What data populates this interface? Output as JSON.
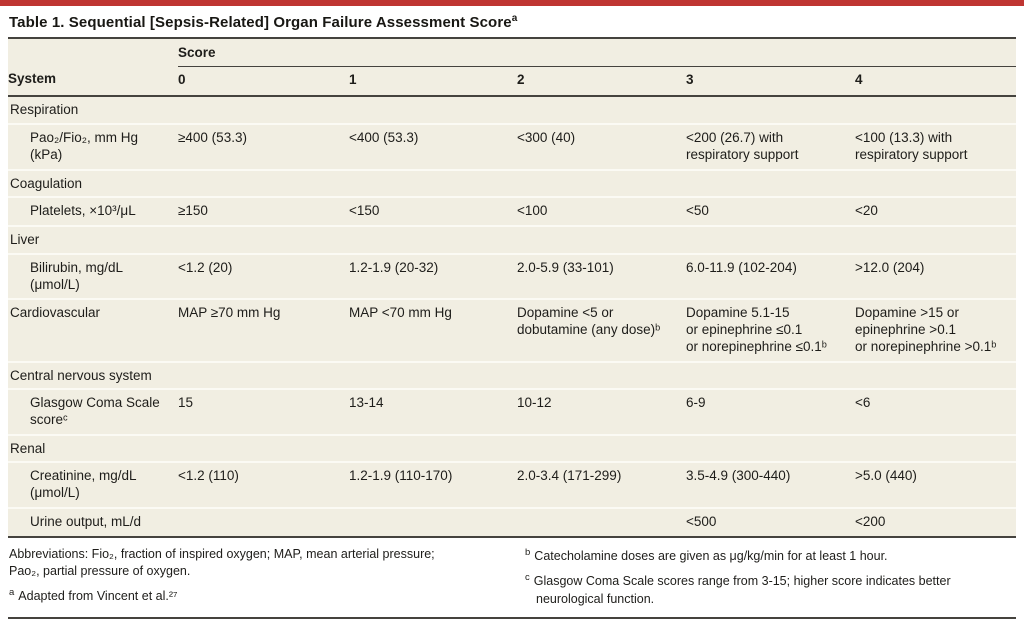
{
  "colors": {
    "accent_bar": "#bf3532",
    "table_background": "#f1eee2",
    "heavy_rule": "#45433e"
  },
  "title": {
    "text": "Table 1. Sequential [Sepsis-Related] Organ Failure Assessment Score",
    "marker": "a"
  },
  "header": {
    "score_group": "Score",
    "system": "System",
    "scores": [
      "0",
      "1",
      "2",
      "3",
      "4"
    ]
  },
  "rows": [
    {
      "type": "section",
      "label": "Respiration"
    },
    {
      "type": "sub",
      "label": "Pao₂/Fio₂, mm Hg\n(kPa)",
      "values": [
        "≥400 (53.3)",
        "<400 (53.3)",
        "<300 (40)",
        "<200 (26.7) with\nrespiratory support",
        "<100 (13.3) with\nrespiratory support"
      ]
    },
    {
      "type": "section",
      "label": "Coagulation"
    },
    {
      "type": "sub",
      "label": "Platelets, ×10³/μL",
      "values": [
        "≥150",
        "<150",
        "<100",
        "<50",
        "<20"
      ]
    },
    {
      "type": "section",
      "label": "Liver"
    },
    {
      "type": "sub",
      "label": "Bilirubin, mg/dL\n(μmol/L)",
      "values": [
        "<1.2 (20)",
        "1.2-1.9 (20-32)",
        "2.0-5.9 (33-101)",
        "6.0-11.9 (102-204)",
        ">12.0 (204)"
      ]
    },
    {
      "type": "main",
      "label": "Cardiovascular",
      "values": [
        "MAP ≥70 mm Hg",
        "MAP <70 mm Hg",
        "Dopamine <5 or\ndobutamine (any dose)ᵇ",
        "Dopamine 5.1-15\nor epinephrine ≤0.1\nor norepinephrine ≤0.1ᵇ",
        "Dopamine >15 or\nepinephrine >0.1\nor norepinephrine >0.1ᵇ"
      ]
    },
    {
      "type": "section",
      "label": "Central nervous system"
    },
    {
      "type": "sub",
      "label": "Glasgow Coma Scale\nscoreᶜ",
      "values": [
        "15",
        "13-14",
        "10-12",
        "6-9",
        "<6"
      ]
    },
    {
      "type": "section",
      "label": "Renal"
    },
    {
      "type": "sub",
      "label": "Creatinine, mg/dL\n(μmol/L)",
      "values": [
        "<1.2 (110)",
        "1.2-1.9 (110-170)",
        "2.0-3.4 (171-299)",
        "3.5-4.9 (300-440)",
        ">5.0 (440)"
      ]
    },
    {
      "type": "sub",
      "label": "Urine output, mL/d",
      "values": [
        "",
        "",
        "",
        "<500",
        "<200"
      ]
    }
  ],
  "footnotes": {
    "left": [
      {
        "marker": "",
        "text": "Abbreviations: Fio₂, fraction of inspired oxygen; MAP, mean arterial pressure;\nPao₂, partial pressure of oxygen."
      },
      {
        "marker": "a",
        "text": "Adapted from Vincent et al.²⁷"
      }
    ],
    "right": [
      {
        "marker": "b",
        "text": "Catecholamine doses are given as μg/kg/min for at least 1 hour."
      },
      {
        "marker": "c",
        "text": "Glasgow Coma Scale scores range from 3-15; higher score indicates better\nneurological function."
      }
    ]
  }
}
